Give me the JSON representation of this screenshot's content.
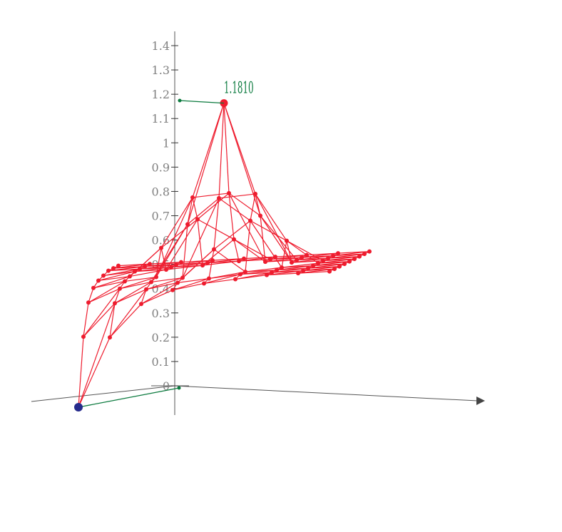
{
  "chart_data": {
    "type": "surface3d",
    "title": "",
    "z_axis": {
      "ticks": [
        "0",
        "0.1",
        "0.2",
        "0.3",
        "0.4",
        "0.5",
        "0.6",
        "0.7",
        "0.8",
        "0.9",
        "1",
        "1.1",
        "1.2",
        "1.3",
        "1.4"
      ],
      "range": [
        0,
        1.4
      ]
    },
    "peak_label": "1.1810",
    "peak_value": 1.181,
    "z_grid": [
      [
        0,
        0.28,
        0.41,
        0.46,
        0.48,
        0.49,
        0.5,
        0.5,
        0.5
      ],
      [
        0.28,
        0.41,
        0.46,
        0.48,
        0.49,
        0.5,
        0.5,
        0.5,
        0.5
      ],
      [
        0.41,
        0.46,
        0.48,
        0.49,
        0.6,
        0.5,
        0.5,
        0.5,
        0.5
      ],
      [
        0.46,
        0.48,
        0.49,
        0.7,
        0.8,
        0.7,
        0.5,
        0.5,
        0.5
      ],
      [
        0.48,
        0.49,
        0.6,
        0.8,
        1.181,
        0.8,
        0.6,
        0.5,
        0.5
      ],
      [
        0.49,
        0.5,
        0.5,
        0.7,
        0.8,
        0.7,
        0.5,
        0.5,
        0.5
      ],
      [
        0.5,
        0.5,
        0.5,
        0.5,
        0.6,
        0.5,
        0.5,
        0.5,
        0.5
      ],
      [
        0.5,
        0.5,
        0.5,
        0.5,
        0.5,
        0.5,
        0.5,
        0.5,
        0.5
      ],
      [
        0.5,
        0.5,
        0.5,
        0.5,
        0.5,
        0.5,
        0.5,
        0.5,
        0.5
      ]
    ],
    "colors": {
      "surface": "#ee1c2e",
      "marker": "#0b7a3e",
      "origin_point": "#262b8c",
      "axis": "#555555",
      "tick_label": "#808080"
    }
  }
}
